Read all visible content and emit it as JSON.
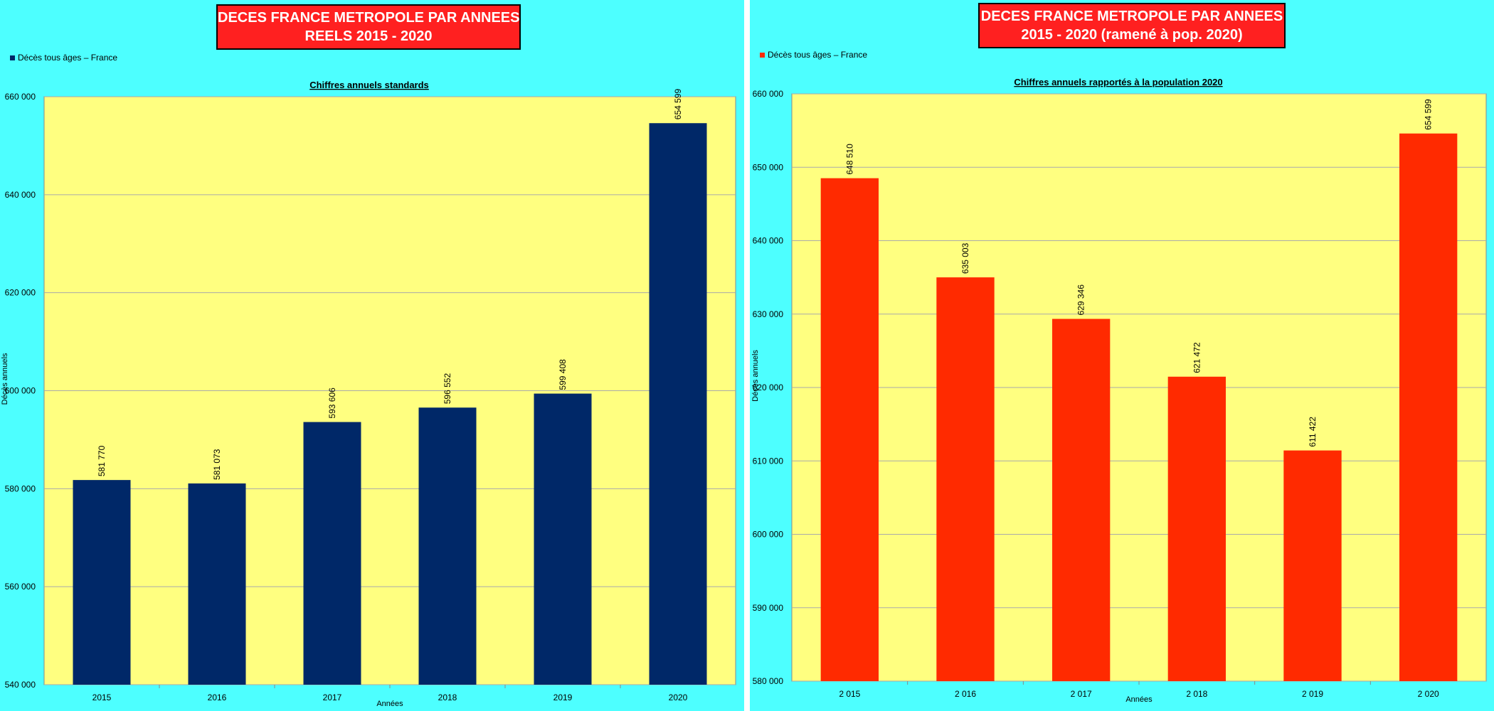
{
  "colors": {
    "panel_bg": "#4dffff",
    "plot_bg": "#ffff80",
    "title_bg": "#ff2020",
    "grid": "#aaaaaa"
  },
  "chart_data": [
    {
      "type": "bar",
      "title_box": [
        "DECES FRANCE METROPOLE PAR ANNEES",
        "REELS 2015 - 2020"
      ],
      "title": "Chiffres annuels standards",
      "legend": "Décès tous âges – France",
      "series": [
        {
          "name": "Décès tous âges – France",
          "color": "#002868",
          "values": [
            581770,
            581073,
            593606,
            596552,
            599408,
            654599
          ]
        }
      ],
      "categories": [
        "2015",
        "2016",
        "2017",
        "2018",
        "2019",
        "2020"
      ],
      "data_labels": [
        "581 770",
        "581 073",
        "593 606",
        "596 552",
        "599 408",
        "654 599"
      ],
      "xlabel": "Années",
      "ylabel": "Décès annuels",
      "ylim": [
        540000,
        660000
      ],
      "yticks": [
        540000,
        560000,
        580000,
        600000,
        620000,
        640000,
        660000
      ],
      "ytick_labels": [
        "540 000",
        "560 000",
        "580 000",
        "600 000",
        "620 000",
        "640 000",
        "660 000"
      ],
      "grid": true,
      "legend_position": "top-left"
    },
    {
      "type": "bar",
      "title_box": [
        "DECES FRANCE METROPOLE PAR ANNEES",
        "2015 - 2020 (ramené à pop. 2020)"
      ],
      "title": "Chiffres annuels rapportés à la population 2020",
      "legend": "Décès tous âges – France",
      "series": [
        {
          "name": "Décès tous âges – France",
          "color": "#ff2a00",
          "values": [
            648510,
            635003,
            629346,
            621472,
            611422,
            654599
          ]
        }
      ],
      "categories": [
        "2 015",
        "2 016",
        "2 017",
        "2 018",
        "2 019",
        "2 020"
      ],
      "data_labels": [
        "648 510",
        "635 003",
        "629 346",
        "621 472",
        "611 422",
        "654 599"
      ],
      "xlabel": "Années",
      "ylabel": "Décès annuels",
      "ylim": [
        580000,
        660000
      ],
      "yticks": [
        580000,
        590000,
        600000,
        610000,
        620000,
        630000,
        640000,
        650000,
        660000
      ],
      "ytick_labels": [
        "580 000",
        "590 000",
        "600 000",
        "610 000",
        "620 000",
        "630 000",
        "640 000",
        "650 000",
        "660 000"
      ],
      "grid": true,
      "legend_position": "top-left"
    }
  ]
}
